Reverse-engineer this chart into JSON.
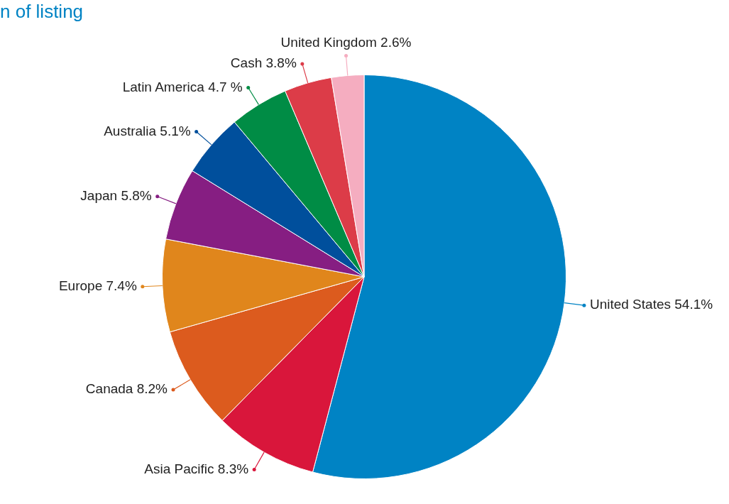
{
  "chart_data": {
    "type": "pie",
    "title": "n of listing",
    "categories": [
      "United States",
      "Asia Pacific",
      "Canada",
      "Europe",
      "Japan",
      "Australia",
      "Latin America",
      "Cash",
      "United Kingdom"
    ],
    "values": [
      54.1,
      8.3,
      8.2,
      7.4,
      5.8,
      5.1,
      4.7,
      3.8,
      2.6
    ],
    "value_labels": [
      "54.1%",
      "8.3%",
      "8.2%",
      "7.4%",
      "5.8%",
      "5.1%",
      "4.7 %",
      "3.8%",
      "2.6%"
    ],
    "colors": [
      "#0083c4",
      "#d9163b",
      "#dc5b1e",
      "#e0861c",
      "#861e82",
      "#004f9c",
      "#008c45",
      "#dc3c48",
      "#f5adc0"
    ],
    "legend": false
  }
}
